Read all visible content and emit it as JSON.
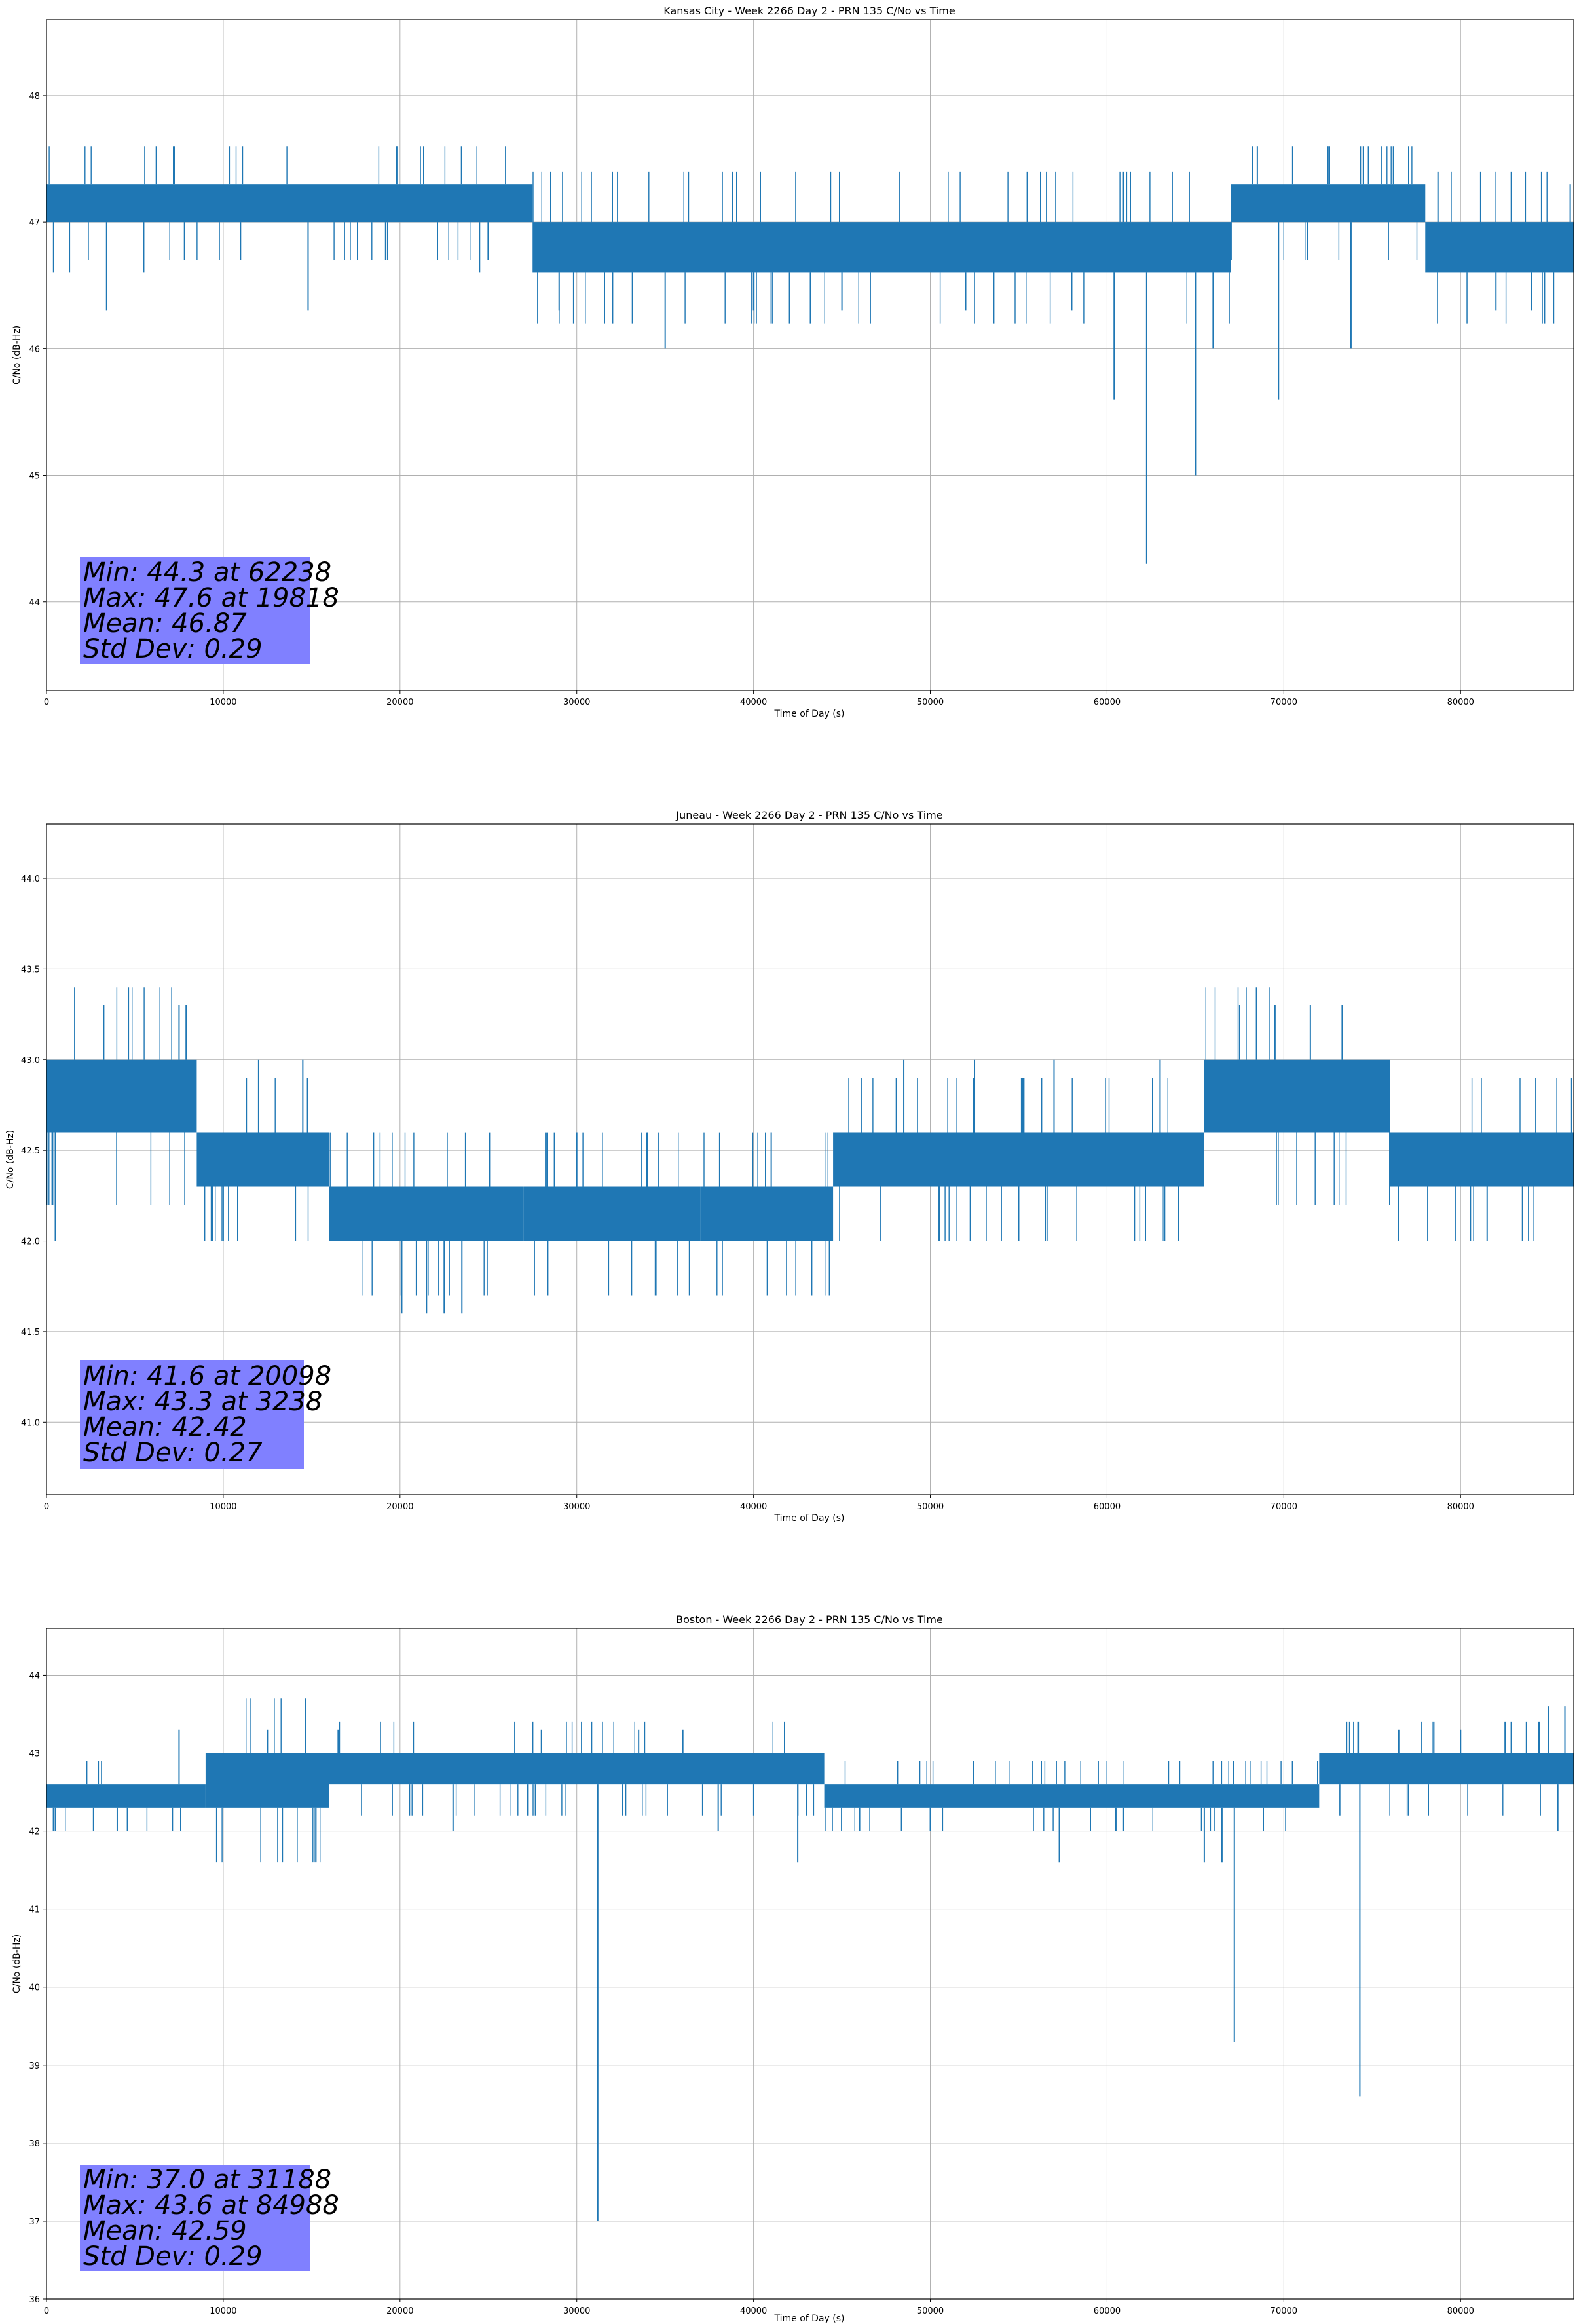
{
  "figure": {
    "background": "#ffffff",
    "line_color": "#1f77b4",
    "grid_color": "#b0b0b0",
    "stats_box_color": "#8080ff"
  },
  "chart_data": [
    {
      "type": "line",
      "title": "Kansas City - Week 2266 Day 2 - PRN 135 C/No vs Time",
      "xlabel": "Time of Day (s)",
      "ylabel": "C/No (dB-Hz)",
      "xlim": [
        0,
        86400
      ],
      "ylim": [
        43.3,
        48.6
      ],
      "xticks": [
        0,
        10000,
        20000,
        30000,
        40000,
        50000,
        60000,
        70000,
        80000
      ],
      "yticks": [
        44,
        45,
        46,
        47,
        48
      ],
      "grid": true,
      "segments": [
        {
          "x": [
            0,
            27500
          ],
          "low": 47.0,
          "high": 47.3
        },
        {
          "x": [
            27500,
            67000
          ],
          "low": 46.6,
          "high": 47.0
        },
        {
          "x": [
            67000,
            78000
          ],
          "low": 47.0,
          "high": 47.3
        },
        {
          "x": [
            78000,
            86400
          ],
          "low": 46.6,
          "high": 47.0
        }
      ],
      "spikes": [
        {
          "x": 400,
          "y": 46.6
        },
        {
          "x": 1300,
          "y": 46.6
        },
        {
          "x": 3400,
          "y": 46.3
        },
        {
          "x": 5500,
          "y": 46.6
        },
        {
          "x": 14800,
          "y": 46.3
        },
        {
          "x": 19818,
          "y": 47.6
        },
        {
          "x": 24500,
          "y": 46.6
        },
        {
          "x": 29000,
          "y": 46.3
        },
        {
          "x": 35000,
          "y": 46.0
        },
        {
          "x": 40000,
          "y": 46.3
        },
        {
          "x": 45000,
          "y": 46.3
        },
        {
          "x": 52000,
          "y": 46.3
        },
        {
          "x": 58000,
          "y": 46.3
        },
        {
          "x": 60400,
          "y": 45.6
        },
        {
          "x": 62238,
          "y": 44.3
        },
        {
          "x": 65000,
          "y": 45.0
        },
        {
          "x": 66000,
          "y": 46.0
        },
        {
          "x": 69700,
          "y": 45.6
        },
        {
          "x": 73800,
          "y": 46.0
        },
        {
          "x": 68500,
          "y": 47.6
        },
        {
          "x": 70500,
          "y": 47.6
        },
        {
          "x": 72500,
          "y": 47.6
        },
        {
          "x": 74500,
          "y": 47.6
        },
        {
          "x": 76200,
          "y": 47.6
        },
        {
          "x": 82000,
          "y": 46.3
        },
        {
          "x": 84000,
          "y": 46.3
        },
        {
          "x": 86200,
          "y": 47.3
        }
      ],
      "stats": {
        "min": "Min: 44.3 at 62238",
        "max": "Max: 47.6 at 19818",
        "mean": "Mean: 46.87",
        "std": "Std Dev: 0.29"
      }
    },
    {
      "type": "line",
      "title": "Juneau - Week 2266 Day 2 - PRN 135 C/No vs Time",
      "xlabel": "Time of Day (s)",
      "ylabel": "C/No (dB-Hz)",
      "xlim": [
        0,
        86400
      ],
      "ylim": [
        40.6,
        44.3
      ],
      "xticks": [
        0,
        10000,
        20000,
        30000,
        40000,
        50000,
        60000,
        70000,
        80000
      ],
      "yticks": [
        41.0,
        41.5,
        42.0,
        42.5,
        43.0,
        43.5,
        44.0
      ],
      "grid": true,
      "segments": [
        {
          "x": [
            0,
            8500
          ],
          "low": 42.6,
          "high": 43.0
        },
        {
          "x": [
            8500,
            16000
          ],
          "low": 42.3,
          "high": 42.6
        },
        {
          "x": [
            16000,
            27000
          ],
          "low": 42.0,
          "high": 42.3
        },
        {
          "x": [
            27000,
            37000
          ],
          "low": 42.0,
          "high": 42.3
        },
        {
          "x": [
            37000,
            44500
          ],
          "low": 42.0,
          "high": 42.3
        },
        {
          "x": [
            44500,
            65500
          ],
          "low": 42.3,
          "high": 42.6
        },
        {
          "x": [
            65500,
            76000
          ],
          "low": 42.6,
          "high": 43.0
        },
        {
          "x": [
            76000,
            86400
          ],
          "low": 42.3,
          "high": 42.6
        }
      ],
      "spikes": [
        {
          "x": 3238,
          "y": 43.3
        },
        {
          "x": 7500,
          "y": 43.3
        },
        {
          "x": 7900,
          "y": 43.3
        },
        {
          "x": 500,
          "y": 42.0
        },
        {
          "x": 10000,
          "y": 42.0
        },
        {
          "x": 12000,
          "y": 43.0
        },
        {
          "x": 14500,
          "y": 43.0
        },
        {
          "x": 20098,
          "y": 41.6
        },
        {
          "x": 21500,
          "y": 41.6
        },
        {
          "x": 22500,
          "y": 41.6
        },
        {
          "x": 23500,
          "y": 41.6
        },
        {
          "x": 18500,
          "y": 42.6
        },
        {
          "x": 30000,
          "y": 42.6
        },
        {
          "x": 34000,
          "y": 42.6
        },
        {
          "x": 41000,
          "y": 42.6
        },
        {
          "x": 48500,
          "y": 43.0
        },
        {
          "x": 50500,
          "y": 42.0
        },
        {
          "x": 52500,
          "y": 43.0
        },
        {
          "x": 55000,
          "y": 42.0
        },
        {
          "x": 57000,
          "y": 43.0
        },
        {
          "x": 63000,
          "y": 43.0
        },
        {
          "x": 67500,
          "y": 43.3
        },
        {
          "x": 69500,
          "y": 43.3
        },
        {
          "x": 71500,
          "y": 43.3
        },
        {
          "x": 73300,
          "y": 43.3
        },
        {
          "x": 81500,
          "y": 42.0
        },
        {
          "x": 83500,
          "y": 42.0
        }
      ],
      "stats": {
        "min": "Min: 41.6 at 20098",
        "max": "Max: 43.3 at 3238",
        "mean": "Mean: 42.42",
        "std": "Std Dev: 0.27"
      }
    },
    {
      "type": "line",
      "title": "Boston - Week 2266 Day 2 - PRN 135 C/No vs Time",
      "xlabel": "Time of Day (s)",
      "ylabel": "C/No (dB-Hz)",
      "xlim": [
        0,
        86400
      ],
      "ylim": [
        36.0,
        44.6
      ],
      "xticks": [
        0,
        10000,
        20000,
        30000,
        40000,
        50000,
        60000,
        70000,
        80000
      ],
      "yticks": [
        36,
        37,
        38,
        39,
        40,
        41,
        42,
        43,
        44
      ],
      "grid": true,
      "segments": [
        {
          "x": [
            0,
            9000
          ],
          "low": 42.3,
          "high": 42.6
        },
        {
          "x": [
            9000,
            16000
          ],
          "low": 42.3,
          "high": 43.0
        },
        {
          "x": [
            16000,
            44000
          ],
          "low": 42.6,
          "high": 43.0
        },
        {
          "x": [
            44000,
            72000
          ],
          "low": 42.3,
          "high": 42.6
        },
        {
          "x": [
            72000,
            86400
          ],
          "low": 42.6,
          "high": 43.0
        }
      ],
      "spikes": [
        {
          "x": 500,
          "y": 42.0
        },
        {
          "x": 4000,
          "y": 42.0
        },
        {
          "x": 7500,
          "y": 43.3
        },
        {
          "x": 12500,
          "y": 43.3
        },
        {
          "x": 16500,
          "y": 43.3
        },
        {
          "x": 23000,
          "y": 42.0
        },
        {
          "x": 28000,
          "y": 43.3
        },
        {
          "x": 31188,
          "y": 37.0
        },
        {
          "x": 33500,
          "y": 43.3
        },
        {
          "x": 36000,
          "y": 43.3
        },
        {
          "x": 38000,
          "y": 42.0
        },
        {
          "x": 42500,
          "y": 41.6
        },
        {
          "x": 46000,
          "y": 42.0
        },
        {
          "x": 50000,
          "y": 42.0
        },
        {
          "x": 57300,
          "y": 41.6
        },
        {
          "x": 60500,
          "y": 42.0
        },
        {
          "x": 65500,
          "y": 41.6
        },
        {
          "x": 66500,
          "y": 41.6
        },
        {
          "x": 67200,
          "y": 39.3
        },
        {
          "x": 74300,
          "y": 38.6
        },
        {
          "x": 76500,
          "y": 43.3
        },
        {
          "x": 80000,
          "y": 43.3
        },
        {
          "x": 84988,
          "y": 43.6
        },
        {
          "x": 85900,
          "y": 43.6
        },
        {
          "x": 85500,
          "y": 42.0
        }
      ],
      "stats": {
        "min": "Min: 37.0 at 31188",
        "max": "Max: 43.6 at 84988",
        "mean": "Mean: 42.59",
        "std": "Std Dev: 0.29"
      }
    }
  ]
}
